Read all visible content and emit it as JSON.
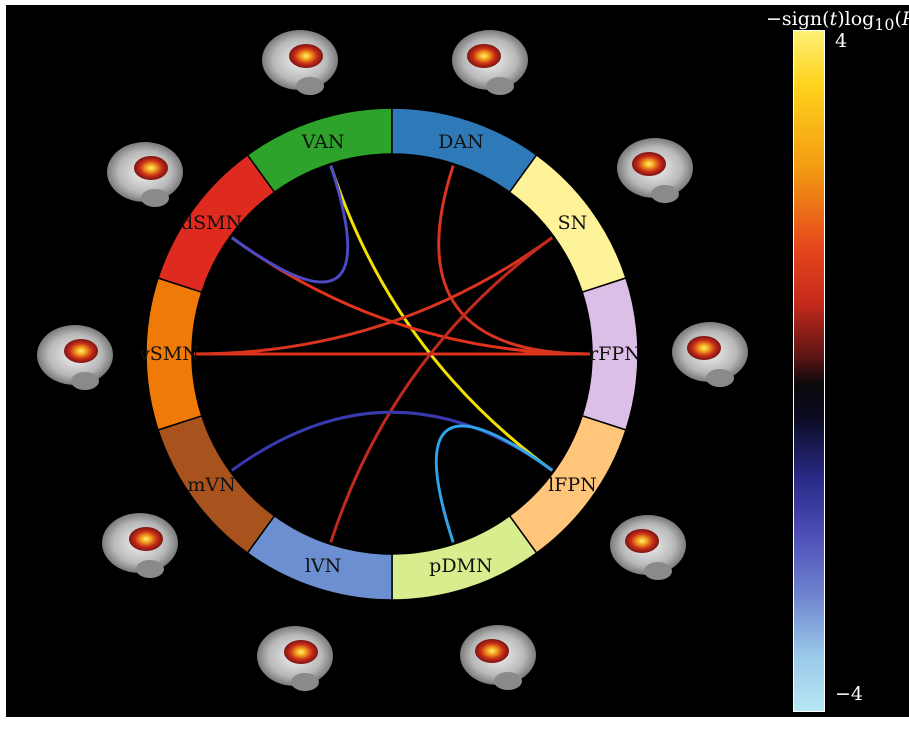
{
  "networks": [
    {
      "label": "VAN",
      "color": "#2ea32b"
    },
    {
      "label": "DAN",
      "color": "#2e7ab8"
    },
    {
      "label": "SN",
      "color": "#fff39a"
    },
    {
      "label": "rFPN",
      "color": "#dcbfe6"
    },
    {
      "label": "lFPN",
      "color": "#fec57b"
    },
    {
      "label": "pDMN",
      "color": "#d8ee8e"
    },
    {
      "label": "lVN",
      "color": "#6b8fd0"
    },
    {
      "label": "mVN",
      "color": "#a8531e"
    },
    {
      "label": "vSMN",
      "color": "#ef7a08"
    },
    {
      "label": "dSMN",
      "color": "#de2a1f"
    }
  ],
  "connections": [
    {
      "from": "VAN",
      "to": "lFPN",
      "color": "#f2e000"
    },
    {
      "from": "dSMN",
      "to": "rFPN",
      "color": "#e1321c"
    },
    {
      "from": "vSMN",
      "to": "rFPN",
      "color": "#e1321c"
    },
    {
      "from": "DAN",
      "to": "rFPN",
      "color": "#d83420"
    },
    {
      "from": "SN",
      "to": "vSMN",
      "color": "#d83420"
    },
    {
      "from": "lVN",
      "to": "SN",
      "color": "#c02a1e"
    },
    {
      "from": "mVN",
      "to": "lFPN",
      "color": "#3a3ab0"
    },
    {
      "from": "dSMN",
      "to": "VAN",
      "color": "#4b4bc8"
    },
    {
      "from": "pDMN",
      "to": "lFPN",
      "color": "#2fa4e8"
    }
  ],
  "colorbar": {
    "title_prefix": "−sign(",
    "title_t": "t",
    "title_mid": ")log",
    "title_sub": "10",
    "title_open": "(",
    "title_p": "P",
    "title_close": ")",
    "max_label": "4",
    "min_label": "−4"
  }
}
